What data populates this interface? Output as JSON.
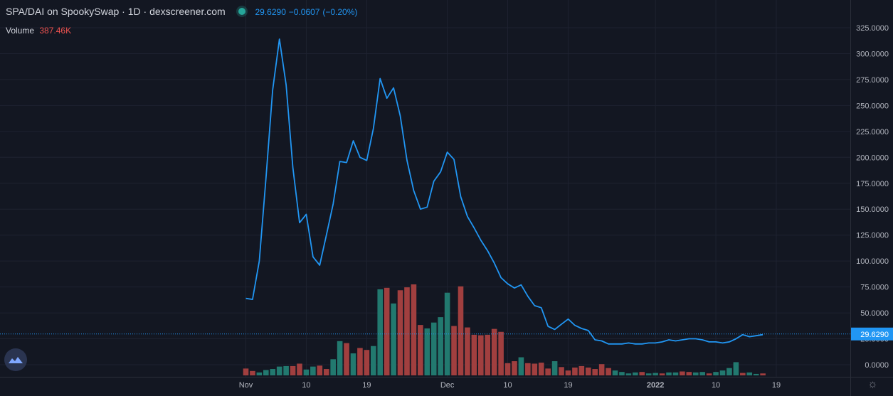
{
  "legend": {
    "symbol": "SPA/DAI on SpookySwap",
    "sep1": "·",
    "interval": "1D",
    "sep2": "·",
    "source": "dexscreener.com",
    "price": "29.6290",
    "change": "−0.0607",
    "change_pct": "(−0.20%)",
    "volume_label": "Volume",
    "volume_value": "387.46K"
  },
  "icons": {
    "logo": "dexscreener-logo-icon",
    "settings": "gear-icon"
  },
  "colors": {
    "background": "#131722",
    "line": "#2196f3",
    "up": "#26a69a",
    "down": "#ef5350",
    "grid": "#1e2230",
    "text": "#d1d4dc"
  },
  "chart_data": {
    "type": "line",
    "title": "SPA/DAI on SpookySwap · 1D · dexscreener.com",
    "ylim": [
      0,
      340
    ],
    "yticks": [
      0,
      25,
      50,
      75,
      100,
      125,
      150,
      175,
      200,
      225,
      250,
      275,
      300,
      325
    ],
    "ytick_labels": [
      "0.0000",
      "25.0000",
      "50.0000",
      "75.0000",
      "100.0000",
      "125.0000",
      "150.0000",
      "175.0000",
      "200.0000",
      "225.0000",
      "250.0000",
      "275.0000",
      "300.0000",
      "325.0000"
    ],
    "xticks": [
      {
        "date": "2021-11-01",
        "label": "Nov",
        "bold": false
      },
      {
        "date": "2021-11-10",
        "label": "10",
        "bold": false
      },
      {
        "date": "2021-11-19",
        "label": "19",
        "bold": false
      },
      {
        "date": "2021-12-01",
        "label": "Dec",
        "bold": false
      },
      {
        "date": "2021-12-10",
        "label": "10",
        "bold": false
      },
      {
        "date": "2021-12-19",
        "label": "19",
        "bold": false
      },
      {
        "date": "2022-01-01",
        "label": "2022",
        "bold": true
      },
      {
        "date": "2022-01-10",
        "label": "10",
        "bold": false
      },
      {
        "date": "2022-01-19",
        "label": "19",
        "bold": false
      }
    ],
    "last_price_label": "29.6290",
    "last_price": 29.629,
    "series": [
      {
        "role": "price",
        "x": [
          "2021-11-01",
          "2021-11-02",
          "2021-11-03",
          "2021-11-04",
          "2021-11-05",
          "2021-11-06",
          "2021-11-07",
          "2021-11-08",
          "2021-11-09",
          "2021-11-10",
          "2021-11-11",
          "2021-11-12",
          "2021-11-13",
          "2021-11-14",
          "2021-11-15",
          "2021-11-16",
          "2021-11-17",
          "2021-11-18",
          "2021-11-19",
          "2021-11-20",
          "2021-11-21",
          "2021-11-22",
          "2021-11-23",
          "2021-11-24",
          "2021-11-25",
          "2021-11-26",
          "2021-11-27",
          "2021-11-28",
          "2021-11-29",
          "2021-11-30",
          "2021-12-01",
          "2021-12-02",
          "2021-12-03",
          "2021-12-04",
          "2021-12-05",
          "2021-12-06",
          "2021-12-07",
          "2021-12-08",
          "2021-12-09",
          "2021-12-10",
          "2021-12-11",
          "2021-12-12",
          "2021-12-13",
          "2021-12-14",
          "2021-12-15",
          "2021-12-16",
          "2021-12-17",
          "2021-12-18",
          "2021-12-19",
          "2021-12-20",
          "2021-12-21",
          "2021-12-22",
          "2021-12-23",
          "2021-12-24",
          "2021-12-25",
          "2021-12-26",
          "2021-12-27",
          "2021-12-28",
          "2021-12-29",
          "2021-12-30",
          "2021-12-31",
          "2022-01-01",
          "2022-01-02",
          "2022-01-03",
          "2022-01-04",
          "2022-01-05",
          "2022-01-06",
          "2022-01-07",
          "2022-01-08",
          "2022-01-09",
          "2022-01-10",
          "2022-01-11",
          "2022-01-12",
          "2022-01-13",
          "2022-01-14",
          "2022-01-15",
          "2022-01-16",
          "2022-01-17"
        ],
        "values": [
          64,
          63,
          100,
          180,
          265,
          314,
          270,
          190,
          137,
          145,
          104,
          96,
          125,
          155,
          196,
          195,
          216,
          200,
          197,
          228,
          276,
          257,
          267,
          240,
          197,
          168,
          150,
          152,
          177,
          186,
          205,
          198,
          162,
          143,
          132,
          120,
          110,
          98,
          84,
          78,
          74,
          77,
          66,
          57,
          55,
          37,
          34,
          39,
          44,
          38,
          35,
          33,
          24,
          23,
          20,
          20,
          20,
          21,
          20,
          20,
          21,
          21,
          22,
          24,
          23,
          24,
          25,
          25,
          24,
          22,
          22,
          21,
          22,
          25,
          29,
          27,
          28,
          29
        ]
      },
      {
        "role": "volume",
        "x": [
          "2021-11-01",
          "2021-11-02",
          "2021-11-03",
          "2021-11-04",
          "2021-11-05",
          "2021-11-06",
          "2021-11-07",
          "2021-11-08",
          "2021-11-09",
          "2021-11-10",
          "2021-11-11",
          "2021-11-12",
          "2021-11-13",
          "2021-11-14",
          "2021-11-15",
          "2021-11-16",
          "2021-11-17",
          "2021-11-18",
          "2021-11-19",
          "2021-11-20",
          "2021-11-21",
          "2021-11-22",
          "2021-11-23",
          "2021-11-24",
          "2021-11-25",
          "2021-11-26",
          "2021-11-27",
          "2021-11-28",
          "2021-11-29",
          "2021-11-30",
          "2021-12-01",
          "2021-12-02",
          "2021-12-03",
          "2021-12-04",
          "2021-12-05",
          "2021-12-06",
          "2021-12-07",
          "2021-12-08",
          "2021-12-09",
          "2021-12-10",
          "2021-12-11",
          "2021-12-12",
          "2021-12-13",
          "2021-12-14",
          "2021-12-15",
          "2021-12-16",
          "2021-12-17",
          "2021-12-18",
          "2021-12-19",
          "2021-12-20",
          "2021-12-21",
          "2021-12-22",
          "2021-12-23",
          "2021-12-24",
          "2021-12-25",
          "2021-12-26",
          "2021-12-27",
          "2021-12-28",
          "2021-12-29",
          "2021-12-30",
          "2021-12-31",
          "2022-01-01",
          "2022-01-02",
          "2022-01-03",
          "2022-01-04",
          "2022-01-05",
          "2022-01-06",
          "2022-01-07",
          "2022-01-08",
          "2022-01-09",
          "2022-01-10",
          "2022-01-11",
          "2022-01-12",
          "2022-01-13",
          "2022-01-14",
          "2022-01-15",
          "2022-01-16",
          "2022-01-17"
        ],
        "values": [
          14,
          9,
          6,
          11,
          13,
          18,
          19,
          19,
          24,
          12,
          18,
          20,
          13,
          33,
          70,
          66,
          45,
          56,
          52,
          60,
          176,
          179,
          147,
          174,
          180,
          186,
          103,
          96,
          108,
          119,
          169,
          101,
          182,
          98,
          83,
          82,
          83,
          95,
          89,
          25,
          29,
          37,
          25,
          24,
          26,
          14,
          29,
          17,
          10,
          16,
          19,
          16,
          13,
          23,
          15,
          10,
          7,
          4,
          6,
          7,
          4,
          5,
          4,
          6,
          6,
          8,
          7,
          6,
          7,
          4,
          7,
          10,
          15,
          27,
          5,
          6,
          3,
          4
        ],
        "direction": [
          "down",
          "down",
          "up",
          "up",
          "up",
          "up",
          "up",
          "down",
          "down",
          "up",
          "up",
          "down",
          "down",
          "up",
          "up",
          "down",
          "up",
          "down",
          "down",
          "up",
          "up",
          "down",
          "up",
          "down",
          "down",
          "down",
          "down",
          "up",
          "up",
          "up",
          "up",
          "down",
          "down",
          "down",
          "down",
          "down",
          "down",
          "down",
          "down",
          "down",
          "down",
          "up",
          "down",
          "down",
          "down",
          "down",
          "up",
          "down",
          "down",
          "down",
          "down",
          "down",
          "down",
          "down",
          "down",
          "up",
          "up",
          "up",
          "up",
          "down",
          "up",
          "up",
          "down",
          "up",
          "up",
          "down",
          "down",
          "up",
          "up",
          "down",
          "up",
          "up",
          "up",
          "up",
          "down",
          "up",
          "up",
          "down"
        ]
      }
    ]
  }
}
